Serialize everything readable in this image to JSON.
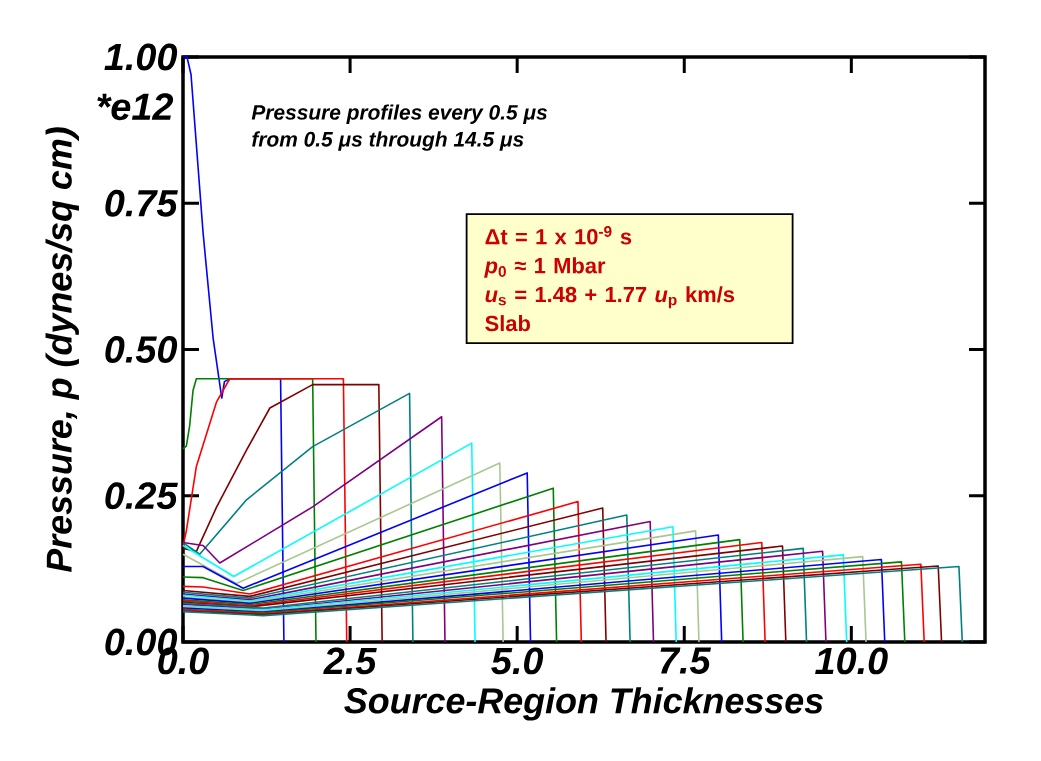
{
  "chart_data": {
    "type": "line",
    "xlabel": "Source-Region Thicknesses",
    "ylabel": "Pressure, p (dynes/sq cm)",
    "annotations": [
      "Pressure profiles every 0.5 μs",
      "from 0.5 μs through 14.5 μs",
      "*e12",
      "Δt = 1 x 10$^{-9}$ s",
      "*p*$_{0}$ ≈ 1 Mbar",
      "*u*$_{s}$ = 1.48 + 1.77 *u*$_{p}$  km/s",
      "Slab"
    ],
    "xlim": [
      0,
      12
    ],
    "ylim": [
      0,
      1.0
    ],
    "xticks": [
      {
        "value": 0,
        "label": "0.0"
      },
      {
        "value": 2.5,
        "label": "2.5"
      },
      {
        "value": 5,
        "label": "5.0"
      },
      {
        "value": 7.5,
        "label": "7.5"
      },
      {
        "value": 10,
        "label": "10.0"
      }
    ],
    "yticks": [
      {
        "value": 0,
        "label": "0.00"
      },
      {
        "value": 0.25,
        "label": "0.25"
      },
      {
        "value": 0.5,
        "label": "0.50"
      },
      {
        "value": 0.75,
        "label": "0.75"
      },
      {
        "value": 1.0,
        "label": "1.00"
      }
    ],
    "series": [
      {
        "color": "#0000ff",
        "x": [
          0,
          0.06,
          0.12,
          0.3,
          0.45,
          0.58,
          0.62,
          0.7,
          1.46,
          1.51
        ],
        "values": [
          1.0,
          1.0,
          0.97,
          0.7,
          0.52,
          0.417,
          0.445,
          0.45,
          0.45,
          0
        ]
      },
      {
        "color": "#008000",
        "x": [
          0,
          0.05,
          0.1,
          0.15,
          0.2,
          1.94,
          1.99
        ],
        "values": [
          0.33,
          0.335,
          0.37,
          0.43,
          0.45,
          0.45,
          0
        ]
      },
      {
        "color": "#ff0000",
        "x": [
          0,
          0.05,
          0.2,
          0.5,
          0.7,
          2.4,
          2.45
        ],
        "values": [
          0.163,
          0.19,
          0.3,
          0.41,
          0.45,
          0.45,
          0
        ]
      },
      {
        "color": "#800000",
        "x": [
          0,
          0.2,
          0.5,
          0.95,
          1.3,
          1.94,
          2.93,
          2.98
        ],
        "values": [
          0.16,
          0.155,
          0.23,
          0.328,
          0.4,
          0.44,
          0.44,
          0
        ]
      },
      {
        "color": "#008080",
        "x": [
          0,
          0.25,
          0.95,
          1.94,
          3.39,
          3.44
        ],
        "values": [
          0.17,
          0.15,
          0.243,
          0.334,
          0.425,
          0
        ]
      },
      {
        "color": "#800080",
        "x": [
          0,
          0.3,
          0.55,
          1.94,
          3.87,
          3.92
        ],
        "values": [
          0.17,
          0.165,
          0.135,
          0.231,
          0.385,
          0
        ]
      },
      {
        "color": "#00ffff",
        "x": [
          0,
          0.76,
          4.32,
          4.37
        ],
        "values": [
          0.165,
          0.112,
          0.34,
          0
        ]
      },
      {
        "color": "#a8c890",
        "x": [
          0,
          0.8,
          4.74,
          4.79
        ],
        "values": [
          0.15,
          0.1,
          0.306,
          0
        ]
      },
      {
        "color": "#0000ff",
        "x": [
          0,
          0.3,
          0.9,
          5.15,
          5.2
        ],
        "values": [
          0.129,
          0.129,
          0.092,
          0.289,
          0
        ]
      },
      {
        "color": "#008000",
        "x": [
          0,
          0.3,
          0.9,
          5.54,
          5.59
        ],
        "values": [
          0.111,
          0.11,
          0.088,
          0.263,
          0
        ]
      },
      {
        "color": "#ff0000",
        "x": [
          0,
          0.3,
          1.0,
          5.91,
          5.96
        ],
        "values": [
          0.095,
          0.094,
          0.082,
          0.24,
          0
        ]
      },
      {
        "color": "#800000",
        "x": [
          0,
          1.0,
          6.28,
          6.33
        ],
        "values": [
          0.088,
          0.078,
          0.229,
          0
        ]
      },
      {
        "color": "#008080",
        "x": [
          0,
          1.0,
          6.64,
          6.69
        ],
        "values": [
          0.085,
          0.075,
          0.217,
          0
        ]
      },
      {
        "color": "#800080",
        "x": [
          0,
          1.0,
          6.99,
          7.04
        ],
        "values": [
          0.082,
          0.072,
          0.206,
          0
        ]
      },
      {
        "color": "#00ffff",
        "x": [
          0,
          1.0,
          7.33,
          7.38
        ],
        "values": [
          0.08,
          0.07,
          0.197,
          0
        ]
      },
      {
        "color": "#a8c890",
        "x": [
          0,
          1.0,
          7.67,
          7.72
        ],
        "values": [
          0.077,
          0.068,
          0.19,
          0
        ]
      },
      {
        "color": "#0000ff",
        "x": [
          0,
          1.0,
          8.01,
          8.06
        ],
        "values": [
          0.075,
          0.066,
          0.183,
          0
        ]
      },
      {
        "color": "#008000",
        "x": [
          0,
          1.0,
          8.33,
          8.38
        ],
        "values": [
          0.072,
          0.064,
          0.175,
          0
        ]
      },
      {
        "color": "#ff0000",
        "x": [
          0,
          1.0,
          8.66,
          8.71
        ],
        "values": [
          0.07,
          0.062,
          0.17,
          0
        ]
      },
      {
        "color": "#800000",
        "x": [
          0,
          1.0,
          8.97,
          9.02
        ],
        "values": [
          0.068,
          0.06,
          0.164,
          0
        ]
      },
      {
        "color": "#008080",
        "x": [
          0,
          1.2,
          9.28,
          9.33
        ],
        "values": [
          0.066,
          0.058,
          0.16,
          0
        ]
      },
      {
        "color": "#800080",
        "x": [
          0,
          1.2,
          9.57,
          9.62
        ],
        "values": [
          0.064,
          0.056,
          0.155,
          0
        ]
      },
      {
        "color": "#00ffff",
        "x": [
          0,
          1.2,
          9.88,
          9.93
        ],
        "values": [
          0.062,
          0.055,
          0.149,
          0
        ]
      },
      {
        "color": "#a8c890",
        "x": [
          0,
          1.2,
          10.17,
          10.22
        ],
        "values": [
          0.06,
          0.053,
          0.146,
          0
        ]
      },
      {
        "color": "#0000ff",
        "x": [
          0,
          1.2,
          10.45,
          10.5
        ],
        "values": [
          0.058,
          0.051,
          0.141,
          0
        ]
      },
      {
        "color": "#008000",
        "x": [
          0,
          1.2,
          10.75,
          10.8
        ],
        "values": [
          0.056,
          0.05,
          0.137,
          0
        ]
      },
      {
        "color": "#ff0000",
        "x": [
          0,
          1.2,
          11.04,
          11.09
        ],
        "values": [
          0.055,
          0.048,
          0.133,
          0
        ]
      },
      {
        "color": "#800000",
        "x": [
          0,
          1.2,
          11.3,
          11.35
        ],
        "values": [
          0.053,
          0.047,
          0.13,
          0
        ]
      },
      {
        "color": "#008080",
        "x": [
          0,
          1.2,
          11.61,
          11.66
        ],
        "values": [
          0.052,
          0.045,
          0.129,
          0
        ]
      }
    ]
  }
}
